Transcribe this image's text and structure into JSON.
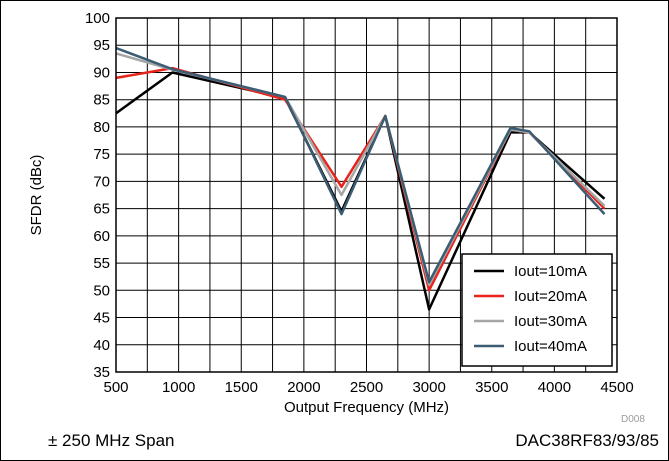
{
  "chart_data": {
    "type": "line",
    "title": "",
    "xlabel": "Output Frequency (MHz)",
    "ylabel": "SFDR (dBc)",
    "xlim": [
      500,
      4500
    ],
    "ylim": [
      35,
      100
    ],
    "xticks": [
      500,
      1000,
      1500,
      2000,
      2500,
      3000,
      3500,
      4000,
      4500
    ],
    "yticks": [
      35,
      40,
      45,
      50,
      55,
      60,
      65,
      70,
      75,
      80,
      85,
      90,
      95,
      100
    ],
    "grid": true,
    "legend_position": "bottom-right",
    "series": [
      {
        "name": "Iout=10mA",
        "color": "#000000",
        "points": [
          [
            500,
            82.5
          ],
          [
            950,
            90.0
          ],
          [
            1850,
            85.3
          ],
          [
            2300,
            64.5
          ],
          [
            2650,
            82.0
          ],
          [
            3000,
            46.5
          ],
          [
            3650,
            79.0
          ],
          [
            3800,
            79.0
          ],
          [
            4400,
            66.8
          ]
        ]
      },
      {
        "name": "Iout=20mA",
        "color": "#e8231c",
        "points": [
          [
            500,
            89.0
          ],
          [
            950,
            90.8
          ],
          [
            1850,
            85.0
          ],
          [
            2300,
            69.0
          ],
          [
            2650,
            82.0
          ],
          [
            3000,
            50.0
          ],
          [
            3650,
            79.5
          ],
          [
            3800,
            79.0
          ],
          [
            4400,
            65.0
          ]
        ]
      },
      {
        "name": "Iout=30mA",
        "color": "#a6a6a6",
        "points": [
          [
            500,
            93.5
          ],
          [
            950,
            90.5
          ],
          [
            1850,
            85.5
          ],
          [
            2300,
            67.5
          ],
          [
            2650,
            82.0
          ],
          [
            3000,
            51.0
          ],
          [
            3650,
            79.5
          ],
          [
            3800,
            79.0
          ],
          [
            4400,
            65.5
          ]
        ]
      },
      {
        "name": "Iout=40mA",
        "color": "#3b5d74",
        "points": [
          [
            500,
            94.5
          ],
          [
            950,
            90.6
          ],
          [
            1850,
            85.5
          ],
          [
            2300,
            64.0
          ],
          [
            2650,
            82.0
          ],
          [
            3000,
            51.5
          ],
          [
            3650,
            79.8
          ],
          [
            3800,
            79.2
          ],
          [
            4400,
            64.0
          ]
        ]
      }
    ]
  },
  "captions": {
    "left": "± 250 MHz Span",
    "right": "DAC38RF83/93/85",
    "code": "D008"
  }
}
